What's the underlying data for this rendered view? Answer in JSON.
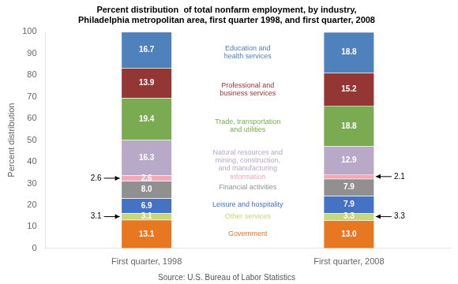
{
  "chart_data": {
    "type": "bar",
    "stacked": true,
    "title": "Percent distribution  of total nonfarm employment, by industry,\nPhiladelphia metropolitan area, first quarter 1998, and first quarter, 2008",
    "ylabel": "Percent distribution",
    "source": "Source: U.S. Bureau of Labor Statistics",
    "categories": [
      "First quarter, 1998",
      "First quarter, 2008"
    ],
    "series": [
      {
        "name": "Government",
        "color": "#E87722",
        "values": [
          13.1,
          13.0
        ],
        "value_labels": [
          "13.1",
          "13.0"
        ]
      },
      {
        "name": "Other services",
        "color": "#C6D87A",
        "values": [
          3.1,
          3.3
        ],
        "value_labels": [
          "3.1",
          "3.3"
        ]
      },
      {
        "name": "Leisure and hospitality",
        "color": "#4472C4",
        "values": [
          6.9,
          7.9
        ],
        "value_labels": [
          "6.9",
          "7.9"
        ]
      },
      {
        "name": "Financial activities",
        "color": "#909090",
        "values": [
          8.0,
          7.9
        ],
        "value_labels": [
          "8.0",
          "7.9"
        ]
      },
      {
        "name": "Information",
        "color": "#F4A7B9",
        "values": [
          2.6,
          2.1
        ],
        "value_labels": [
          "2.6",
          null
        ]
      },
      {
        "name": "Natural resources and\nmining, construction,\nand manufacturing",
        "color": "#B8A9C9",
        "values": [
          16.3,
          12.9
        ],
        "value_labels": [
          "16.3",
          "12.9"
        ]
      },
      {
        "name": "Trade, transportation\nand utilities",
        "color": "#7AAB52",
        "values": [
          19.4,
          18.8
        ],
        "value_labels": [
          "19.4",
          "18.8"
        ]
      },
      {
        "name": "Professional and\nbusiness services",
        "color": "#943634",
        "values": [
          13.9,
          15.2
        ],
        "value_labels": [
          "13.9",
          "15.2"
        ]
      },
      {
        "name": "Education and\nhealth services",
        "color": "#4F81BD",
        "values": [
          16.7,
          18.8
        ],
        "value_labels": [
          "16.7",
          "18.8"
        ]
      }
    ],
    "ylim": [
      0,
      100
    ],
    "yticks": [
      0,
      10,
      20,
      30,
      40,
      50,
      60,
      70,
      80,
      90,
      100
    ],
    "grid": false,
    "data_labels": true,
    "annotations": [
      {
        "text": "2.6",
        "series": "Information",
        "category": "First quarter, 1998"
      },
      {
        "text": "3.1",
        "series": "Other services",
        "category": "First quarter, 1998"
      },
      {
        "text": "2.1",
        "series": "Information",
        "category": "First quarter, 2008"
      },
      {
        "text": "3.3",
        "series": "Other services",
        "category": "First quarter, 2008"
      }
    ]
  }
}
